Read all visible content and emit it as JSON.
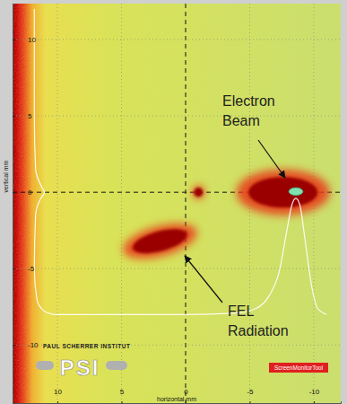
{
  "chart_data": {
    "type": "image",
    "x_label": "horizontal mm",
    "y_label": "vertical mm",
    "xlim": [
      13.5,
      -12.1
    ],
    "ylim": [
      -13.8,
      12.35
    ],
    "xticks": [
      10,
      5,
      0,
      -5,
      -10
    ],
    "yticks": [
      -10,
      -5,
      0,
      5,
      10
    ],
    "grid": true,
    "spots": [
      {
        "label": [
          "Electron",
          "Beam"
        ],
        "x": -7.6,
        "y": 0,
        "width": 5.4,
        "height": 2.0
      },
      {
        "label": [
          "FEL",
          "Radiation"
        ],
        "x": 2.0,
        "y": -3.2,
        "width": 4.4,
        "height": 1.3
      },
      {
        "x": -1.0,
        "y": 0,
        "width": 0.7,
        "height": 0.6
      }
    ],
    "peak": {
      "x": -8.6,
      "y": 0.05,
      "width": 1.1,
      "height": 0.5
    },
    "horizontal_profile": {
      "x": [
        10.3,
        5,
        0,
        -4,
        -5.5,
        -6.5,
        -7.3,
        -7.9,
        -8.3,
        -8.6,
        -8.9,
        -9.3,
        -9.8,
        -10.3,
        -11
      ],
      "values": [
        -8.0,
        -8.0,
        -8.0,
        -7.9,
        -7.6,
        -6.8,
        -5.2,
        -2.5,
        -0.8,
        -0.4,
        -0.8,
        -3.0,
        -6.0,
        -7.6,
        -8.0
      ]
    },
    "vertical_profile": {
      "x": [
        11.8,
        11.8,
        11.7,
        11.2,
        11.0,
        11.3,
        11.7,
        11.8,
        11.6,
        11.0,
        10.3
      ],
      "values": [
        12.0,
        5,
        1.5,
        0.3,
        0,
        -0.4,
        -1.5,
        -5,
        -7.0,
        -7.8,
        -8.0
      ]
    },
    "institute": "PAUL SCHERRER INSTITUT",
    "logo": "PSI",
    "badge": "ScreenMonitorTool"
  }
}
